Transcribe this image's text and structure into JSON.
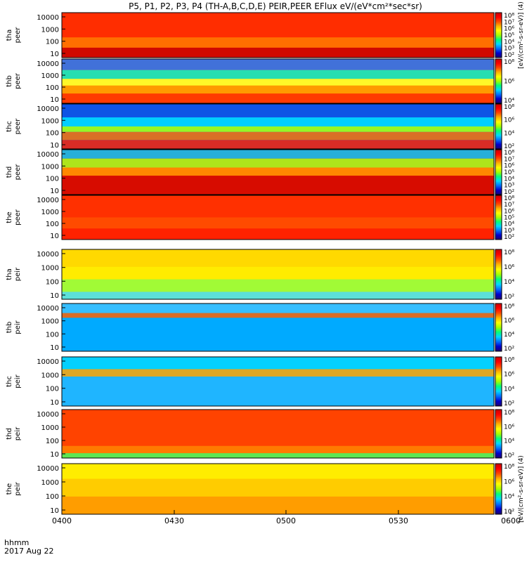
{
  "chart_data": {
    "type": "heatmap",
    "title": "P5, P1, P2, P3, P4 (TH-A,B,C,D,E) PEIR,PEER EFlux eV/(eV*cm²*sec*sr)",
    "time_label": "hhmm",
    "date_label": "2017 Aug 22",
    "x_ticks": [
      "0400",
      "0430",
      "0500",
      "0530",
      "0600"
    ],
    "x_range": [
      "04:00",
      "06:00"
    ],
    "colorscale": [
      "#1d0070",
      "#0000d0",
      "#0070ff",
      "#00d8ff",
      "#00ff7a",
      "#a6ff00",
      "#ffff00",
      "#ffb400",
      "#ff4a00",
      "#ff0000",
      "#c80000"
    ],
    "panels": [
      {
        "ylabel1": "tha",
        "ylabel2": "peer",
        "yticks": [
          "10000",
          "1000",
          "100",
          "10"
        ],
        "cbar_ticks": [
          "10⁸",
          "10⁷",
          "10⁶",
          "10⁵",
          "10⁴",
          "10³",
          "10²"
        ],
        "cbar_label": "[eV/(cm²-s-sr-eV)] (4)"
      },
      {
        "ylabel1": "thb",
        "ylabel2": "peer",
        "yticks": [
          "10000",
          "1000",
          "100",
          "10"
        ],
        "cbar_ticks": [
          "10⁸",
          "10⁶",
          "10⁴"
        ],
        "cbar_label": ""
      },
      {
        "ylabel1": "thc",
        "ylabel2": "peer",
        "yticks": [
          "10000",
          "1000",
          "100",
          "10"
        ],
        "cbar_ticks": [
          "10⁸",
          "10⁶",
          "10⁴",
          "10²"
        ],
        "cbar_label": ""
      },
      {
        "ylabel1": "thd",
        "ylabel2": "peer",
        "yticks": [
          "10000",
          "1000",
          "100",
          "10"
        ],
        "cbar_ticks": [
          "10⁸",
          "10⁷",
          "10⁶",
          "10⁵",
          "10⁴",
          "10³",
          "10²"
        ],
        "cbar_label": ""
      },
      {
        "ylabel1": "the",
        "ylabel2": "peer",
        "yticks": [
          "10000",
          "1000",
          "100",
          "10"
        ],
        "cbar_ticks": [
          "10⁸",
          "10⁷",
          "10⁶",
          "10⁵",
          "10⁴",
          "10³",
          "10²"
        ],
        "cbar_label": ""
      },
      {
        "ylabel1": "tha",
        "ylabel2": "peir",
        "yticks": [
          "10000",
          "1000",
          "100",
          "10"
        ],
        "cbar_ticks": [
          "10⁸",
          "10⁶",
          "10⁴",
          "10²"
        ],
        "cbar_label": ""
      },
      {
        "ylabel1": "thb",
        "ylabel2": "peir",
        "yticks": [
          "10000",
          "1000",
          "100",
          "10"
        ],
        "cbar_ticks": [
          "10⁸",
          "10⁶",
          "10⁴",
          "10²"
        ],
        "cbar_label": ""
      },
      {
        "ylabel1": "thc",
        "ylabel2": "peir",
        "yticks": [
          "10000",
          "1000",
          "100",
          "10"
        ],
        "cbar_ticks": [
          "10⁸",
          "10⁶",
          "10⁴",
          "10²"
        ],
        "cbar_label": ""
      },
      {
        "ylabel1": "thd",
        "ylabel2": "peir",
        "yticks": [
          "10000",
          "1000",
          "100",
          "10"
        ],
        "cbar_ticks": [
          "10⁸",
          "10⁶",
          "10⁴",
          "10²"
        ],
        "cbar_label": ""
      },
      {
        "ylabel1": "the",
        "ylabel2": "peir",
        "yticks": [
          "10000",
          "1000",
          "100",
          "10"
        ],
        "cbar_ticks": [
          "10⁸",
          "10⁶",
          "10⁴",
          "10²"
        ],
        "cbar_label": "[eV/(cm²-s-sr-eV)] (4)"
      }
    ]
  }
}
